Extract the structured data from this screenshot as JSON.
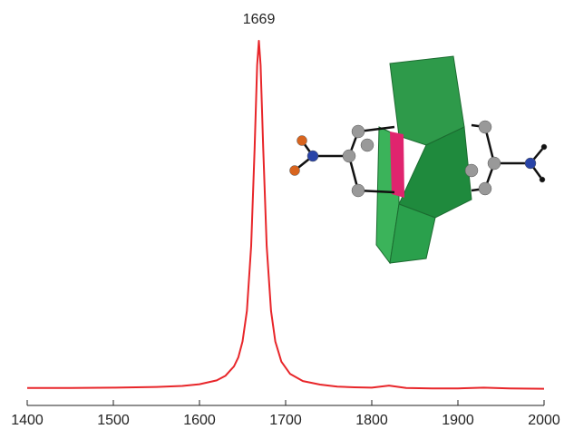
{
  "chart_data": {
    "type": "line",
    "annotation": "1669",
    "annotation_x": 1669,
    "x": [
      1400,
      1450,
      1500,
      1550,
      1580,
      1600,
      1620,
      1630,
      1640,
      1645,
      1650,
      1655,
      1660,
      1664,
      1667,
      1669,
      1671,
      1674,
      1678,
      1683,
      1688,
      1695,
      1705,
      1720,
      1740,
      1760,
      1780,
      1800,
      1820,
      1840,
      1870,
      1900,
      1930,
      1960,
      2000
    ],
    "values": [
      1.1,
      1.1,
      1.2,
      1.4,
      1.7,
      2.2,
      3.3,
      4.6,
      7.3,
      9.9,
      14.5,
      23.3,
      42,
      70,
      94,
      101,
      94,
      70,
      42,
      23.3,
      14.5,
      8.7,
      5.2,
      3.1,
      2.1,
      1.5,
      1.3,
      1.2,
      1.8,
      1.1,
      1.0,
      1.0,
      1.2,
      1.0,
      0.9
    ],
    "color": "#e8262a",
    "xlim": [
      1400,
      2000
    ],
    "xticks": [
      1400,
      1500,
      1600,
      1700,
      1800,
      1900,
      2000
    ],
    "ylim": [
      0,
      101
    ]
  }
}
